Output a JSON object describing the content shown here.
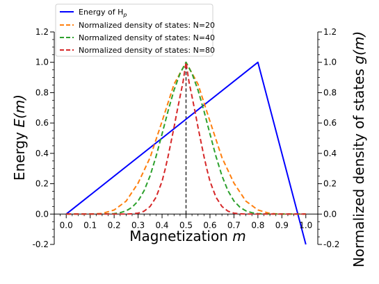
{
  "chart_data": {
    "type": "line",
    "xlabel": "Magnetization",
    "xlabel_var": "m",
    "ylabel_left": "Energy",
    "ylabel_left_var": "E(m)",
    "ylabel_right": "Normalized density of states",
    "ylabel_right_var": "g(m)",
    "xlim": [
      -0.05,
      1.05
    ],
    "ylim": [
      -0.2,
      1.2
    ],
    "x_ticks": [
      "0.0",
      "0.1",
      "0.2",
      "0.3",
      "0.4",
      "0.5",
      "0.6",
      "0.7",
      "0.8",
      "0.9",
      "1.0"
    ],
    "y_ticks": [
      "1.2",
      "1.0",
      "0.8",
      "0.6",
      "0.4",
      "0.2",
      "0.0",
      "-0.2"
    ],
    "y_tick_values": [
      1.2,
      1.0,
      0.8,
      0.6,
      0.4,
      0.2,
      0.0,
      -0.2
    ],
    "legend_position": "top-left",
    "series": [
      {
        "name": "Energy of H",
        "name_sub": "p",
        "color": "#0000ff",
        "style": "solid",
        "x": [
          0.0,
          0.8,
          1.0
        ],
        "y": [
          0.0,
          1.0,
          -0.2
        ]
      },
      {
        "name": "Normalized density of states: N=20",
        "color": "#ff7f0e",
        "style": "dashed",
        "x": [
          0.0,
          0.05,
          0.1,
          0.15,
          0.2,
          0.25,
          0.3,
          0.35,
          0.4,
          0.45,
          0.5,
          0.55,
          0.6,
          0.65,
          0.7,
          0.75,
          0.8,
          0.85,
          0.9,
          0.95,
          1.0
        ],
        "y": [
          0.0,
          0.0,
          0.0,
          0.004,
          0.027,
          0.085,
          0.204,
          0.372,
          0.611,
          0.856,
          1.0,
          0.856,
          0.611,
          0.372,
          0.204,
          0.085,
          0.027,
          0.004,
          0.0,
          0.0,
          0.0
        ]
      },
      {
        "name": "Normalized density of states: N=40",
        "color": "#2ca02c",
        "style": "dashed",
        "x": [
          0.0,
          0.1,
          0.15,
          0.2,
          0.225,
          0.25,
          0.275,
          0.3,
          0.325,
          0.35,
          0.375,
          0.4,
          0.425,
          0.45,
          0.475,
          0.5,
          0.525,
          0.55,
          0.575,
          0.6,
          0.625,
          0.65,
          0.675,
          0.7,
          0.725,
          0.75,
          0.775,
          0.8,
          0.85,
          0.9,
          1.0
        ],
        "y": [
          0.0,
          0.0,
          0.0,
          0.003,
          0.009,
          0.021,
          0.045,
          0.086,
          0.154,
          0.252,
          0.38,
          0.528,
          0.679,
          0.817,
          0.926,
          1.0,
          0.926,
          0.817,
          0.679,
          0.528,
          0.38,
          0.252,
          0.154,
          0.086,
          0.045,
          0.021,
          0.009,
          0.003,
          0.0,
          0.0,
          0.0
        ]
      },
      {
        "name": "Normalized density of states: N=80",
        "color": "#d62728",
        "style": "dashed",
        "x": [
          0.0,
          0.2,
          0.25,
          0.275,
          0.3,
          0.325,
          0.35,
          0.375,
          0.4,
          0.4125,
          0.425,
          0.4375,
          0.45,
          0.4625,
          0.475,
          0.4875,
          0.5,
          0.5125,
          0.525,
          0.5375,
          0.55,
          0.5625,
          0.575,
          0.5875,
          0.6,
          0.625,
          0.65,
          0.675,
          0.7,
          0.725,
          0.75,
          0.8,
          1.0
        ],
        "y": [
          0.0,
          0.0,
          0.0,
          0.002,
          0.006,
          0.019,
          0.05,
          0.111,
          0.216,
          0.293,
          0.379,
          0.475,
          0.572,
          0.676,
          0.774,
          0.87,
          1.0,
          0.87,
          0.774,
          0.676,
          0.572,
          0.475,
          0.379,
          0.293,
          0.216,
          0.111,
          0.05,
          0.019,
          0.006,
          0.002,
          0.0,
          0.0,
          0.0
        ]
      }
    ],
    "annotations": [
      {
        "type": "vline",
        "x": 0.5,
        "y_from": 0.0,
        "y_to": 1.0,
        "color": "#000000",
        "style": "dashed"
      }
    ]
  }
}
